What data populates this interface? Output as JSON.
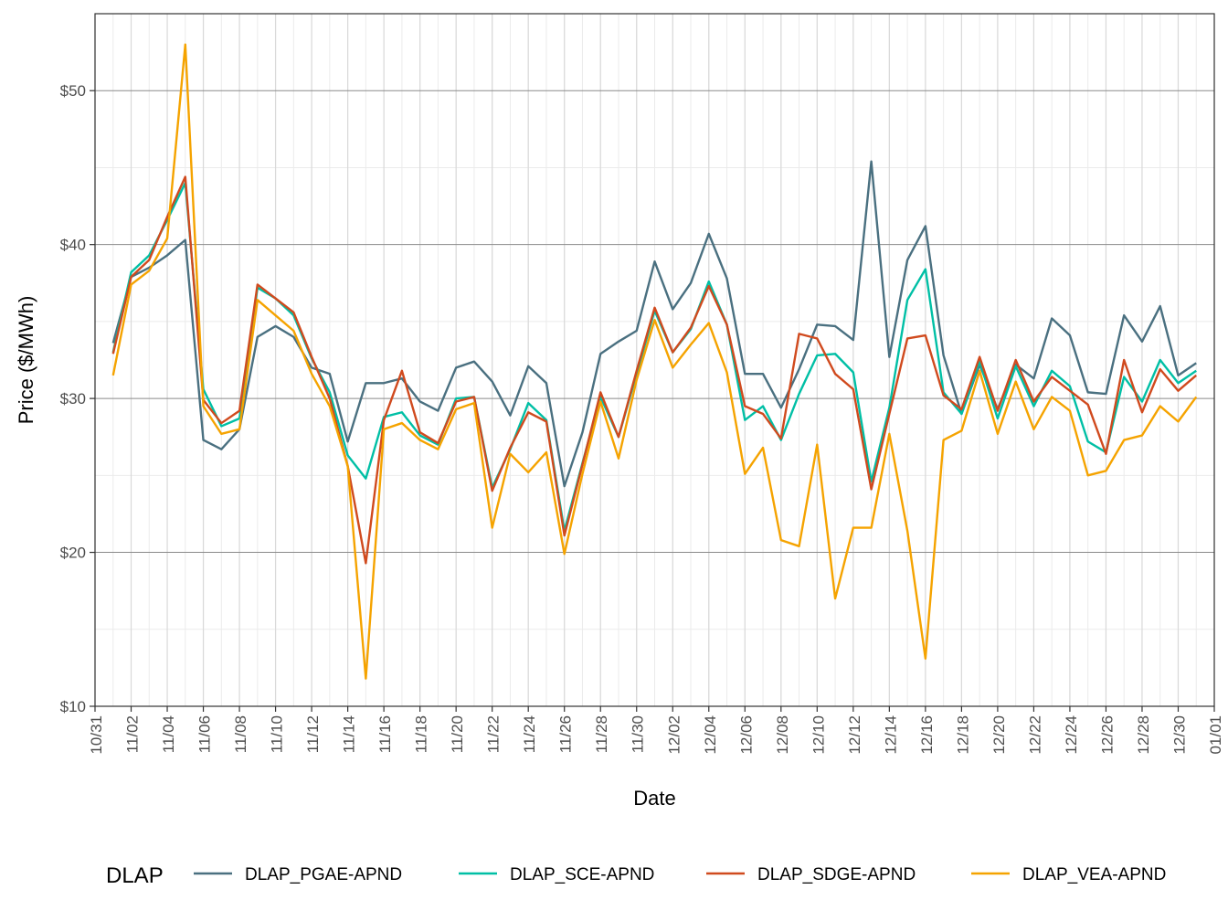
{
  "chart_data": {
    "type": "line",
    "xlabel": "Date",
    "ylabel": "Price ($/MWh)",
    "xlim": [
      "10/31",
      "01/01"
    ],
    "ylim": [
      10,
      55
    ],
    "x_ticks": [
      "10/31",
      "11/02",
      "11/04",
      "11/06",
      "11/08",
      "11/10",
      "11/12",
      "11/14",
      "11/16",
      "11/18",
      "11/20",
      "11/22",
      "11/24",
      "11/26",
      "11/28",
      "11/30",
      "12/02",
      "12/04",
      "12/06",
      "12/08",
      "12/10",
      "12/12",
      "12/14",
      "12/16",
      "12/18",
      "12/20",
      "12/22",
      "12/24",
      "12/26",
      "12/28",
      "12/30",
      "01/01"
    ],
    "y_ticks": [
      {
        "value": 10,
        "label": "$10"
      },
      {
        "value": 20,
        "label": "$20"
      },
      {
        "value": 30,
        "label": "$30"
      },
      {
        "value": 40,
        "label": "$40"
      },
      {
        "value": 50,
        "label": "$50"
      }
    ],
    "grid": true,
    "legend_title": "DLAP",
    "legend_position": "bottom",
    "x": [
      "11/01",
      "11/02",
      "11/03",
      "11/04",
      "11/05",
      "11/06",
      "11/07",
      "11/08",
      "11/09",
      "11/10",
      "11/11",
      "11/12",
      "11/13",
      "11/14",
      "11/15",
      "11/16",
      "11/17",
      "11/18",
      "11/19",
      "11/20",
      "11/21",
      "11/22",
      "11/23",
      "11/24",
      "11/25",
      "11/26",
      "11/27",
      "11/28",
      "11/29",
      "11/30",
      "12/01",
      "12/02",
      "12/03",
      "12/04",
      "12/05",
      "12/06",
      "12/07",
      "12/08",
      "12/09",
      "12/10",
      "12/11",
      "12/12",
      "12/13",
      "12/14",
      "12/15",
      "12/16",
      "12/17",
      "12/18",
      "12/19",
      "12/20",
      "12/21",
      "12/22",
      "12/23",
      "12/24",
      "12/25",
      "12/26",
      "12/27",
      "12/28",
      "12/29",
      "12/30",
      "12/31"
    ],
    "series": [
      {
        "name": "DLAP_PGAE-APND",
        "color": "#4a7080",
        "values": [
          33.6,
          37.9,
          38.5,
          39.3,
          40.3,
          27.3,
          26.7,
          28.0,
          34.0,
          34.7,
          34.0,
          32.0,
          31.6,
          27.2,
          31.0,
          31.0,
          31.3,
          29.8,
          29.2,
          32.0,
          32.4,
          31.1,
          28.9,
          32.1,
          31.0,
          24.3,
          27.8,
          32.9,
          33.7,
          34.4,
          38.9,
          35.8,
          37.5,
          40.7,
          37.8,
          31.6,
          31.6,
          29.4,
          31.9,
          34.8,
          34.7,
          33.8,
          45.4,
          32.7,
          39.0,
          41.2,
          32.8,
          29.0,
          32.2,
          29.3,
          32.2,
          31.3,
          35.2,
          34.1,
          30.4,
          30.3,
          35.4,
          33.7,
          36.0,
          31.5,
          32.3
        ]
      },
      {
        "name": "DLAP_SCE-APND",
        "color": "#00bfa5",
        "values": [
          33.0,
          38.2,
          39.3,
          41.6,
          44.0,
          30.6,
          28.2,
          28.7,
          37.2,
          36.5,
          35.4,
          32.6,
          30.4,
          26.3,
          24.8,
          28.8,
          29.1,
          27.6,
          27.0,
          30.0,
          30.1,
          24.2,
          26.7,
          29.7,
          28.6,
          21.4,
          25.8,
          30.1,
          27.5,
          31.6,
          35.7,
          33.0,
          34.5,
          37.6,
          34.8,
          28.6,
          29.5,
          27.3,
          30.3,
          32.8,
          32.9,
          31.7,
          24.6,
          29.4,
          36.4,
          38.4,
          30.4,
          29.0,
          32.4,
          28.7,
          32.1,
          29.5,
          31.8,
          30.8,
          27.2,
          26.5,
          31.4,
          29.8,
          32.5,
          31.0,
          31.8
        ]
      },
      {
        "name": "DLAP_SDGE-APND",
        "color": "#d04a1e",
        "values": [
          32.9,
          37.9,
          39.0,
          41.8,
          44.4,
          29.9,
          28.4,
          29.2,
          37.4,
          36.5,
          35.6,
          32.7,
          30.0,
          25.6,
          19.3,
          28.6,
          31.8,
          27.8,
          27.1,
          29.8,
          30.1,
          24.0,
          26.8,
          29.1,
          28.5,
          21.1,
          25.7,
          30.4,
          27.5,
          31.8,
          35.9,
          33.0,
          34.6,
          37.3,
          34.8,
          29.5,
          29.0,
          27.4,
          34.2,
          33.9,
          31.6,
          30.6,
          24.1,
          29.0,
          33.9,
          34.1,
          30.2,
          29.3,
          32.7,
          29.2,
          32.5,
          29.8,
          31.4,
          30.5,
          29.6,
          26.4,
          32.5,
          29.1,
          31.9,
          30.5,
          31.5
        ]
      },
      {
        "name": "DLAP_VEA-APND",
        "color": "#f5a300",
        "values": [
          31.5,
          37.4,
          38.3,
          40.4,
          53.0,
          29.5,
          27.7,
          28.0,
          36.4,
          35.4,
          34.4,
          31.6,
          29.5,
          25.6,
          11.8,
          28.0,
          28.4,
          27.3,
          26.7,
          29.3,
          29.7,
          21.6,
          26.4,
          25.2,
          26.5,
          19.9,
          25.1,
          29.8,
          26.1,
          31.2,
          35.1,
          32.0,
          33.5,
          34.9,
          31.7,
          25.1,
          26.8,
          20.8,
          20.4,
          27.0,
          17.0,
          21.6,
          21.6,
          27.7,
          21.4,
          13.1,
          27.3,
          27.9,
          31.8,
          27.7,
          31.1,
          28.0,
          30.1,
          29.2,
          25.0,
          25.3,
          27.3,
          27.6,
          29.5,
          28.5,
          30.1
        ]
      }
    ]
  }
}
